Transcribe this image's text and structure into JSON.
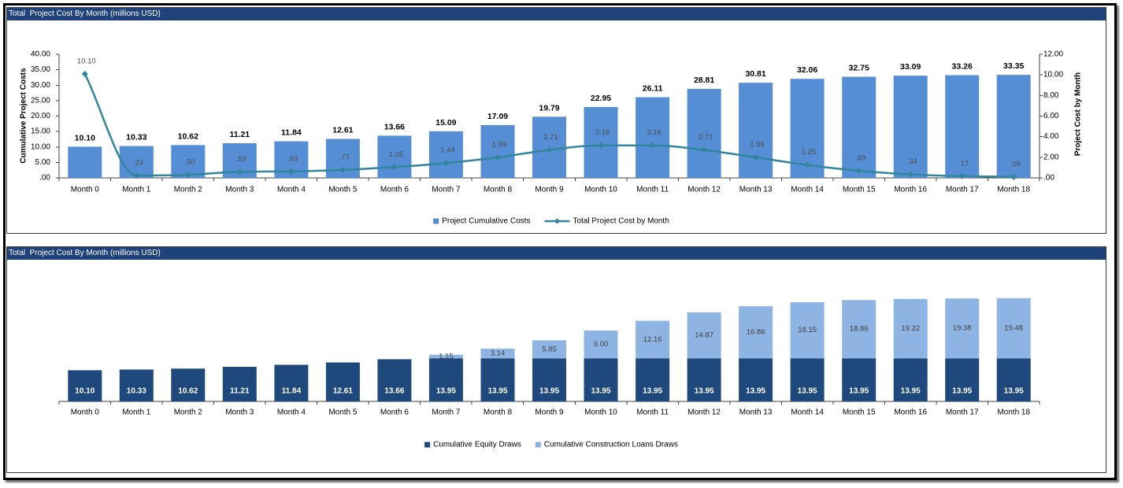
{
  "chart_data": [
    {
      "type": "bar",
      "title": "Total  Project Cost By Month (millions USD)",
      "categories": [
        "Month 0",
        "Month 1",
        "Month 2",
        "Month 3",
        "Month 4",
        "Month 5",
        "Month 6",
        "Month 7",
        "Month 8",
        "Month 9",
        "Month 10",
        "Month 11",
        "Month 12",
        "Month 13",
        "Month 14",
        "Month 15",
        "Month 16",
        "Month 17",
        "Month 18"
      ],
      "series": [
        {
          "name": "Project Cumulative Costs",
          "type": "bar",
          "axis": "left",
          "color": "#558ED5",
          "values": [
            10.1,
            10.33,
            10.62,
            11.21,
            11.84,
            12.61,
            13.66,
            15.09,
            17.09,
            19.79,
            22.95,
            26.11,
            28.81,
            30.81,
            32.06,
            32.75,
            33.09,
            33.26,
            33.35
          ],
          "labels": [
            "10.10",
            "10.33",
            "10.62",
            "11.21",
            "11.84",
            "12.61",
            "13.66",
            "15.09",
            "17.09",
            "19.79",
            "22.95",
            "26.11",
            "28.81",
            "30.81",
            "32.06",
            "32.75",
            "33.09",
            "33.26",
            "33.35"
          ]
        },
        {
          "name": "Total Project Cost by Month",
          "type": "line",
          "axis": "right",
          "marker": "diamond",
          "smooth": true,
          "color": "#31859C",
          "values": [
            10.1,
            0.23,
            0.3,
            0.59,
            0.63,
            0.77,
            1.05,
            1.44,
            1.99,
            2.71,
            3.16,
            3.16,
            2.71,
            1.99,
            1.25,
            0.69,
            0.34,
            0.17,
            0.09
          ],
          "labels": [
            "10.10",
            ".23",
            ".30",
            ".59",
            ".63",
            ".77",
            "1.05",
            "1.44",
            "1.99",
            "2.71",
            "3.16",
            "3.16",
            "2.71",
            "1.99",
            "1.25",
            ".69",
            ".34",
            ".17",
            ".09"
          ]
        }
      ],
      "ylabel": "Cumulative Project Costs",
      "ylim": [
        0,
        40
      ],
      "y_ticks": [
        "40.00",
        "35.00",
        "30.00",
        "25.00",
        "20.00",
        "15.00",
        "10.00",
        "5.00",
        ".00"
      ],
      "y2label": "Project Cost by Month",
      "y2lim": [
        0,
        12
      ],
      "y2_ticks": [
        "12.00",
        "10.00",
        "8.00",
        "6.00",
        "4.00",
        "2.00",
        ".00"
      ],
      "grid": false,
      "legend": "bottom"
    },
    {
      "type": "bar",
      "stacked": true,
      "title": "Total  Project Cost By Month (millions USD)",
      "categories": [
        "Month 0",
        "Month 1",
        "Month 2",
        "Month 3",
        "Month 4",
        "Month 5",
        "Month 6",
        "Month 7",
        "Month 8",
        "Month 9",
        "Month 10",
        "Month 11",
        "Month 12",
        "Month 13",
        "Month 14",
        "Month 15",
        "Month 16",
        "Month 17",
        "Month 18"
      ],
      "series": [
        {
          "name": "Cumulative Equity Draws",
          "color": "#1F497D",
          "values": [
            10.1,
            10.33,
            10.62,
            11.21,
            11.84,
            12.61,
            13.66,
            13.95,
            13.95,
            13.95,
            13.95,
            13.95,
            13.95,
            13.95,
            13.95,
            13.95,
            13.95,
            13.95,
            13.95
          ],
          "labels": [
            "10.10",
            "10.33",
            "10.62",
            "11.21",
            "11.84",
            "12.61",
            "13.66",
            "13.95",
            "13.95",
            "13.95",
            "13.95",
            "13.95",
            "13.95",
            "13.95",
            "13.95",
            "13.95",
            "13.95",
            "13.95",
            "13.95"
          ]
        },
        {
          "name": "Cumulative Construction Loans Draws",
          "color": "#8DB4E2",
          "values": [
            0,
            0,
            0,
            0,
            0,
            0,
            0,
            1.15,
            3.14,
            5.85,
            9.0,
            12.16,
            14.87,
            16.86,
            18.15,
            18.86,
            19.22,
            19.38,
            19.48
          ],
          "labels": [
            null,
            null,
            null,
            null,
            null,
            null,
            null,
            "1.15",
            "3.14",
            "5.85",
            "9.00",
            "12.16",
            "14.87",
            "16.86",
            "18.15",
            "18.86",
            "19.22",
            "19.38",
            "19.48"
          ]
        }
      ],
      "ylim": [
        0,
        40
      ],
      "grid": false,
      "legend": "bottom"
    }
  ]
}
